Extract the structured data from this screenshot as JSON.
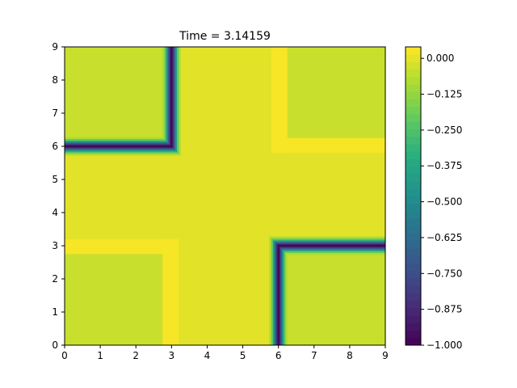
{
  "chart_data": {
    "type": "heatmap",
    "title": "Time = 3.14159",
    "xlabel": "",
    "ylabel": "",
    "xlim": [
      0,
      9
    ],
    "ylim": [
      0,
      9
    ],
    "xticks": [
      "0",
      "1",
      "2",
      "3",
      "4",
      "5",
      "6",
      "7",
      "8",
      "9"
    ],
    "yticks": [
      "0",
      "1",
      "2",
      "3",
      "4",
      "5",
      "6",
      "7",
      "8",
      "9"
    ],
    "colormap": "viridis",
    "colorbar": {
      "range": [
        -1.0,
        0.04
      ],
      "ticks": [
        {
          "value": 0.0,
          "label": "0.000"
        },
        {
          "value": -0.125,
          "label": "−0.125"
        },
        {
          "value": -0.25,
          "label": "−0.250"
        },
        {
          "value": -0.375,
          "label": "−0.375"
        },
        {
          "value": -0.5,
          "label": "−0.500"
        },
        {
          "value": -0.625,
          "label": "−0.625"
        },
        {
          "value": -0.75,
          "label": "−0.750"
        },
        {
          "value": -0.875,
          "label": "−0.875"
        },
        {
          "value": -1.0,
          "label": "−1.000"
        }
      ]
    },
    "background_value": -0.04,
    "regions": [
      {
        "name": "center-cross-vertical",
        "x": [
          3.2,
          5.8
        ],
        "y": [
          0,
          9
        ],
        "value": 0.0
      },
      {
        "name": "center-cross-horizontal",
        "x": [
          0,
          9
        ],
        "y": [
          3.2,
          5.8
        ],
        "value": 0.0
      },
      {
        "name": "bright-strip-upper-right-vertical",
        "x": [
          5.8,
          6.25
        ],
        "y": [
          5.8,
          9
        ],
        "value": 0.03
      },
      {
        "name": "bright-strip-upper-right-horizontal",
        "x": [
          5.8,
          9
        ],
        "y": [
          5.8,
          6.25
        ],
        "value": 0.03
      },
      {
        "name": "bright-strip-lower-left-vertical",
        "x": [
          2.75,
          3.2
        ],
        "y": [
          0,
          3.2
        ],
        "value": 0.03
      },
      {
        "name": "bright-strip-lower-left-horizontal",
        "x": [
          0,
          3.2
        ],
        "y": [
          2.75,
          3.2
        ],
        "value": 0.03
      }
    ],
    "fronts": [
      {
        "name": "upper-left-front",
        "corner": [
          3.0,
          6.0
        ],
        "segments": [
          {
            "x": [
              3.0,
              3.0
            ],
            "y": [
              6.0,
              9.0
            ]
          },
          {
            "x": [
              0.0,
              3.0
            ],
            "y": [
              6.0,
              6.0
            ]
          }
        ]
      },
      {
        "name": "lower-right-front",
        "corner": [
          6.0,
          3.0
        ],
        "segments": [
          {
            "x": [
              6.0,
              6.0
            ],
            "y": [
              0.0,
              3.0
            ]
          },
          {
            "x": [
              6.0,
              9.0
            ],
            "y": [
              3.0,
              3.0
            ]
          }
        ]
      }
    ],
    "front_profile": [
      {
        "distance": 0.0,
        "value": -1.0
      },
      {
        "distance": 0.05,
        "value": -0.92
      },
      {
        "distance": 0.1,
        "value": -0.72
      },
      {
        "distance": 0.15,
        "value": -0.45
      },
      {
        "distance": 0.2,
        "value": -0.22
      },
      {
        "distance": 0.26,
        "value": -0.08
      }
    ]
  }
}
